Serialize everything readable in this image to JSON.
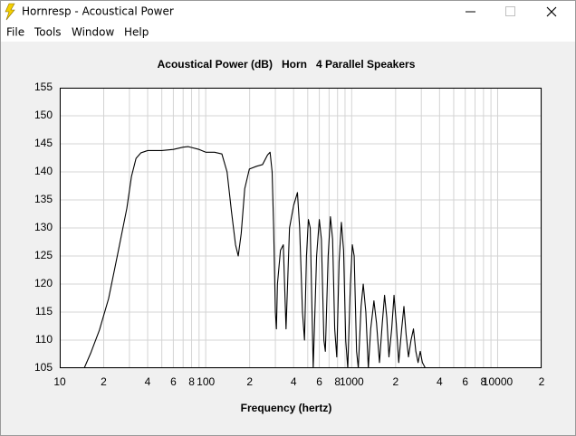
{
  "window": {
    "title": "Hornresp - Acoustical Power"
  },
  "menu": [
    "File",
    "Tools",
    "Window",
    "Help"
  ],
  "chart_data": {
    "type": "line",
    "title": "Acoustical Power (dB)   Horn   4 Parallel Speakers",
    "x_label": "Frequency (hertz)",
    "log_x": true,
    "grid": true,
    "color": "#000000",
    "xlim": [
      10,
      20000
    ],
    "ylim": [
      105,
      155
    ],
    "yticks": [
      105,
      110,
      115,
      120,
      125,
      130,
      135,
      140,
      145,
      150,
      155
    ],
    "xticks": [
      10,
      {
        "value": 20,
        "label": "2"
      },
      {
        "value": 40,
        "label": "4"
      },
      {
        "value": 60,
        "label": "6"
      },
      {
        "value": 80,
        "label": "8"
      },
      100,
      {
        "value": 200,
        "label": "2"
      },
      {
        "value": 400,
        "label": "4"
      },
      {
        "value": 600,
        "label": "6"
      },
      {
        "value": 800,
        "label": "8"
      },
      1000,
      {
        "value": 2000,
        "label": "2"
      },
      {
        "value": 4000,
        "label": "4"
      },
      {
        "value": 6000,
        "label": "6"
      },
      {
        "value": 8000,
        "label": "8"
      },
      10000,
      {
        "value": 20000,
        "label": "2"
      }
    ],
    "x_minor_grid": [
      30,
      50,
      70,
      90,
      300,
      500,
      700,
      900,
      3000,
      5000,
      7000,
      9000
    ],
    "x": [
      14.7,
      16.3,
      18.7,
      21.6,
      25,
      28.8,
      31,
      33.3,
      36,
      40,
      50,
      60,
      70,
      76,
      90,
      100,
      115,
      129,
      140,
      150,
      160,
      167,
      175,
      185,
      199,
      223,
      245,
      265,
      276,
      285,
      292,
      300,
      305,
      310,
      325,
      340,
      355,
      375,
      400,
      425,
      440,
      460,
      475,
      490,
      505,
      520,
      535,
      545,
      575,
      600,
      620,
      645,
      660,
      690,
      715,
      740,
      765,
      790,
      820,
      850,
      880,
      910,
      940,
      980,
      1010,
      1040,
      1080,
      1110,
      1160,
      1200,
      1250,
      1300,
      1350,
      1420,
      1480,
      1550,
      1620,
      1680,
      1740,
      1800,
      1880,
      1950,
      2020,
      2100,
      2200,
      2280,
      2360,
      2450,
      2550,
      2650,
      2750,
      2850,
      2950,
      3050,
      3200
    ],
    "values": [
      105,
      107.7,
      111.8,
      117.4,
      125.5,
      133.5,
      139.2,
      142.4,
      143.4,
      143.8,
      143.8,
      144.0,
      144.4,
      144.5,
      144.0,
      143.5,
      143.5,
      143.2,
      140,
      133,
      127,
      125,
      129,
      137,
      140.5,
      141,
      141.3,
      143.0,
      143.5,
      140,
      130,
      115,
      112,
      120,
      126,
      127,
      112,
      130,
      134,
      136.3,
      130,
      115,
      110,
      125,
      131.5,
      130,
      115,
      105,
      125,
      131.5,
      128,
      110,
      108,
      125,
      132,
      128,
      112,
      107,
      124,
      131,
      126,
      110,
      105,
      120,
      127,
      125,
      108,
      105,
      116,
      120,
      115,
      105,
      112,
      117,
      113,
      106,
      113,
      118,
      114,
      107,
      112,
      118,
      113,
      106,
      112,
      116,
      111,
      107,
      110,
      112,
      108,
      106,
      108,
      106,
      105
    ]
  }
}
